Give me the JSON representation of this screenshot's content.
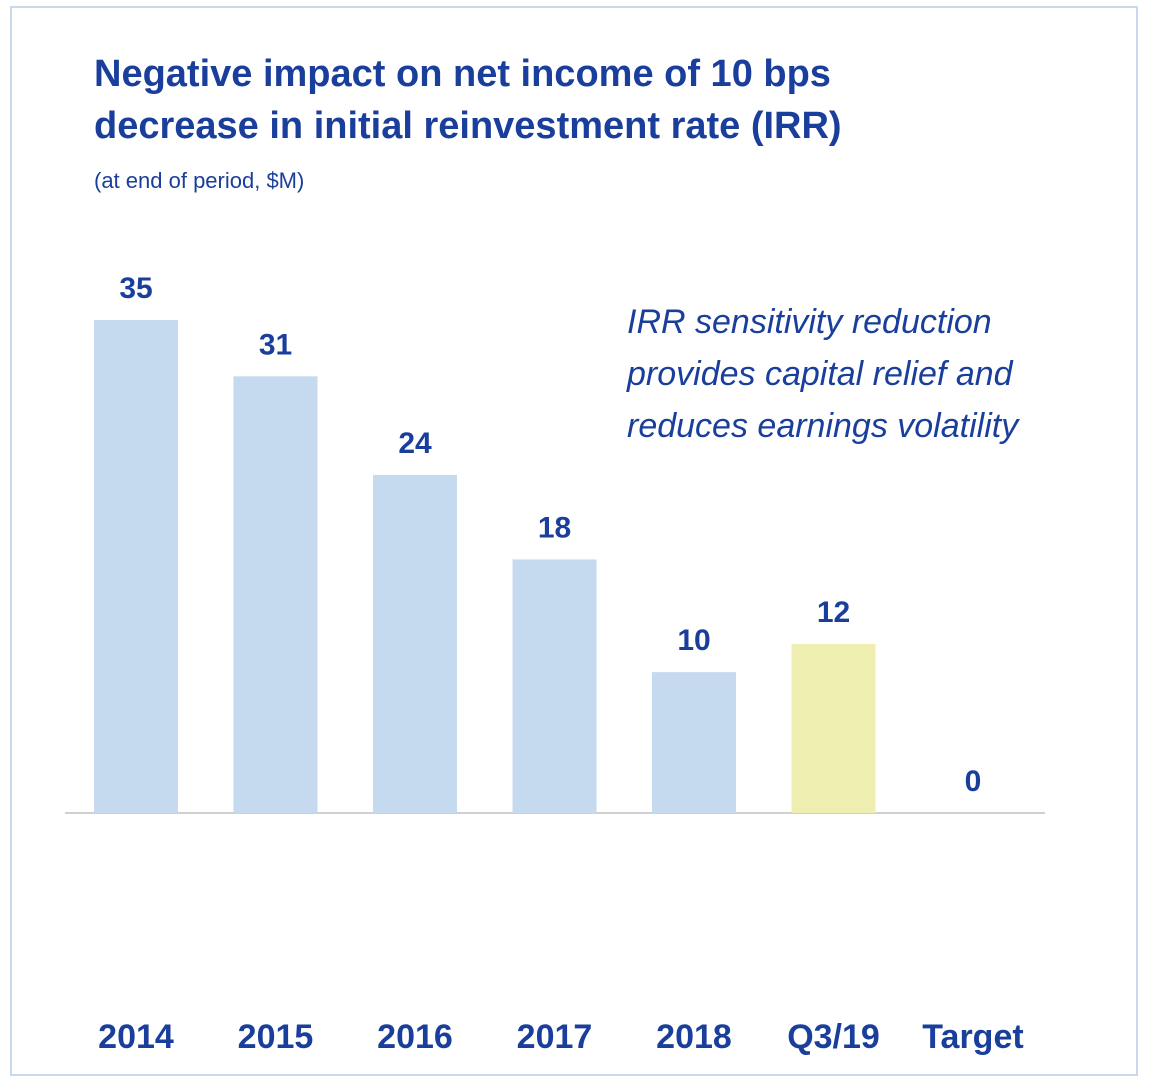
{
  "chart_data": {
    "type": "bar",
    "title": "Negative impact on net income of 10 bps decrease in initial reinvestment rate (IRR)",
    "subtitle": "(at end of period, $M)",
    "annotation": [
      "IRR sensitivity reduction",
      "provides capital relief and",
      "reduces earnings volatility"
    ],
    "categories": [
      "2014",
      "2015",
      "2016",
      "2017",
      "2018",
      "Q3/19",
      "Target"
    ],
    "values": [
      35,
      31,
      24,
      18,
      10,
      12,
      0
    ],
    "colors": [
      "#c5d9ef",
      "#c5d9ef",
      "#c5d9ef",
      "#c5d9ef",
      "#c5d9ef",
      "#eeeeb0",
      "#c5d9ef"
    ]
  }
}
